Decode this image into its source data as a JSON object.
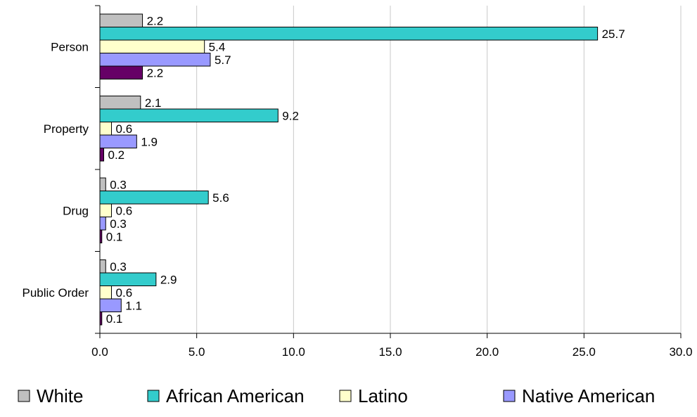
{
  "chart_data": {
    "type": "bar",
    "orientation": "horizontal",
    "categories": [
      "Person",
      "Property",
      "Drug",
      "Public Order"
    ],
    "series": [
      {
        "name": "White",
        "values": [
          2.2,
          2.1,
          0.3,
          0.3
        ],
        "color": "#C0C0C0"
      },
      {
        "name": "African American",
        "values": [
          25.7,
          9.2,
          5.6,
          2.9
        ],
        "color": "#33CCCC"
      },
      {
        "name": "Latino",
        "values": [
          5.4,
          0.6,
          0.6,
          0.6
        ],
        "color": "#FFFFCC"
      },
      {
        "name": "Native American",
        "values": [
          5.7,
          1.9,
          0.3,
          1.1
        ],
        "color": "#9999FF"
      },
      {
        "name": "",
        "values": [
          2.2,
          0.2,
          0.1,
          0.1
        ],
        "color": "#660066"
      }
    ],
    "xlim": [
      0,
      30
    ],
    "xticks": [
      "0.0",
      "5.0",
      "10.0",
      "15.0",
      "20.0",
      "25.0",
      "30.0"
    ],
    "xgrid": true,
    "legend_position": "bottom",
    "title": "",
    "xlabel": "",
    "ylabel": ""
  }
}
